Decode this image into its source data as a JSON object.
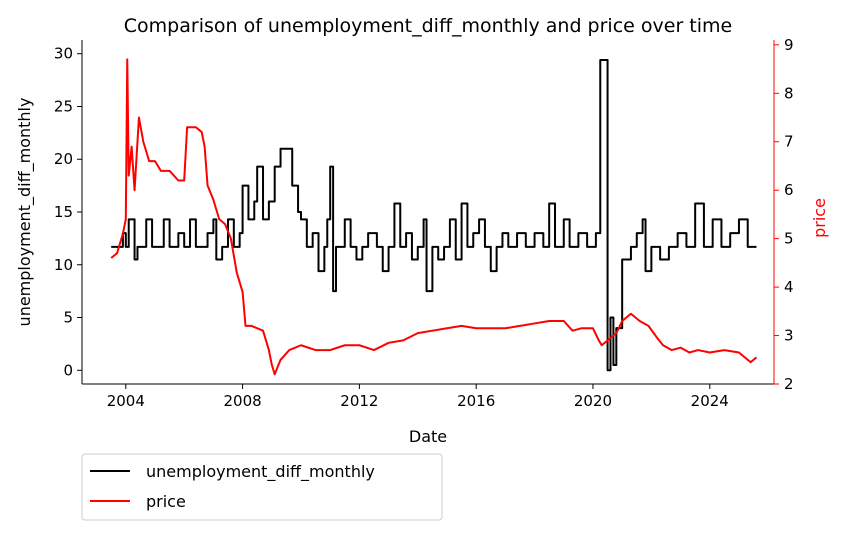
{
  "chart_data": {
    "type": "line",
    "title": "Comparison of unemployment_diff_monthly and price over time",
    "xlabel": "Date",
    "ylabel_left": "unemployment_diff_monthly",
    "ylabel_right": "price",
    "x_ticks": [
      "2004",
      "2008",
      "2012",
      "2016",
      "2020",
      "2024"
    ],
    "x_range": [
      2002.5,
      2026.2
    ],
    "y_left_ticks": [
      0,
      5,
      10,
      15,
      20,
      25,
      30
    ],
    "y_left_range": [
      -1.3,
      31.3
    ],
    "y_right_ticks": [
      2,
      3,
      4,
      5,
      6,
      7,
      8,
      9
    ],
    "y_right_range": [
      2.0,
      9.1
    ],
    "legend_position": "below-left",
    "grid": false,
    "colors": {
      "unemployment_diff_monthly": "#000000",
      "price": "#ff0000",
      "right_axis": "#ff0000"
    },
    "series": [
      {
        "name": "unemployment_diff_monthly",
        "axis": "left",
        "step": true,
        "points": [
          [
            2003.5,
            11.7
          ],
          [
            2003.9,
            13.0
          ],
          [
            2004.0,
            11.7
          ],
          [
            2004.1,
            14.3
          ],
          [
            2004.3,
            10.5
          ],
          [
            2004.4,
            11.7
          ],
          [
            2004.7,
            14.3
          ],
          [
            2004.9,
            11.7
          ],
          [
            2005.3,
            14.3
          ],
          [
            2005.5,
            11.7
          ],
          [
            2005.8,
            13.0
          ],
          [
            2006.0,
            11.7
          ],
          [
            2006.2,
            14.3
          ],
          [
            2006.4,
            11.7
          ],
          [
            2006.8,
            13.0
          ],
          [
            2007.0,
            14.3
          ],
          [
            2007.1,
            10.5
          ],
          [
            2007.3,
            11.7
          ],
          [
            2007.5,
            14.3
          ],
          [
            2007.7,
            11.7
          ],
          [
            2007.9,
            13.0
          ],
          [
            2008.0,
            17.5
          ],
          [
            2008.2,
            14.3
          ],
          [
            2008.4,
            16.0
          ],
          [
            2008.5,
            19.3
          ],
          [
            2008.7,
            14.3
          ],
          [
            2008.9,
            16.0
          ],
          [
            2009.1,
            19.3
          ],
          [
            2009.3,
            21.0
          ],
          [
            2009.7,
            17.5
          ],
          [
            2009.9,
            15.0
          ],
          [
            2010.0,
            14.3
          ],
          [
            2010.2,
            11.7
          ],
          [
            2010.4,
            13.0
          ],
          [
            2010.6,
            9.4
          ],
          [
            2010.8,
            11.7
          ],
          [
            2010.9,
            14.3
          ],
          [
            2011.0,
            19.3
          ],
          [
            2011.1,
            7.5
          ],
          [
            2011.2,
            11.7
          ],
          [
            2011.5,
            14.3
          ],
          [
            2011.7,
            11.7
          ],
          [
            2011.9,
            10.5
          ],
          [
            2012.1,
            11.7
          ],
          [
            2012.3,
            13.0
          ],
          [
            2012.6,
            11.7
          ],
          [
            2012.8,
            9.4
          ],
          [
            2013.0,
            11.7
          ],
          [
            2013.2,
            15.8
          ],
          [
            2013.4,
            11.7
          ],
          [
            2013.6,
            13.0
          ],
          [
            2013.8,
            10.5
          ],
          [
            2014.0,
            11.7
          ],
          [
            2014.2,
            14.3
          ],
          [
            2014.3,
            7.5
          ],
          [
            2014.5,
            11.7
          ],
          [
            2014.7,
            10.5
          ],
          [
            2014.9,
            11.7
          ],
          [
            2015.1,
            14.3
          ],
          [
            2015.3,
            10.5
          ],
          [
            2015.5,
            15.8
          ],
          [
            2015.7,
            11.7
          ],
          [
            2015.9,
            13.0
          ],
          [
            2016.1,
            14.3
          ],
          [
            2016.3,
            11.7
          ],
          [
            2016.5,
            9.4
          ],
          [
            2016.7,
            11.7
          ],
          [
            2016.9,
            13.0
          ],
          [
            2017.1,
            11.7
          ],
          [
            2017.4,
            13.0
          ],
          [
            2017.7,
            11.7
          ],
          [
            2018.0,
            13.0
          ],
          [
            2018.3,
            11.7
          ],
          [
            2018.5,
            15.8
          ],
          [
            2018.7,
            11.7
          ],
          [
            2019.0,
            14.3
          ],
          [
            2019.2,
            11.7
          ],
          [
            2019.5,
            13.0
          ],
          [
            2019.8,
            11.7
          ],
          [
            2020.1,
            13.0
          ],
          [
            2020.25,
            29.4
          ],
          [
            2020.5,
            0.0
          ],
          [
            2020.6,
            5.0
          ],
          [
            2020.7,
            0.5
          ],
          [
            2020.8,
            4.0
          ],
          [
            2021.0,
            10.5
          ],
          [
            2021.3,
            11.7
          ],
          [
            2021.5,
            13.0
          ],
          [
            2021.7,
            14.3
          ],
          [
            2021.8,
            9.4
          ],
          [
            2022.0,
            11.7
          ],
          [
            2022.3,
            10.5
          ],
          [
            2022.6,
            11.7
          ],
          [
            2022.9,
            13.0
          ],
          [
            2023.2,
            11.7
          ],
          [
            2023.5,
            15.8
          ],
          [
            2023.8,
            11.7
          ],
          [
            2024.1,
            14.3
          ],
          [
            2024.4,
            11.7
          ],
          [
            2024.7,
            13.0
          ],
          [
            2025.0,
            14.3
          ],
          [
            2025.3,
            11.7
          ],
          [
            2025.6,
            11.7
          ]
        ]
      },
      {
        "name": "price",
        "axis": "right",
        "step": false,
        "points": [
          [
            2003.5,
            4.6
          ],
          [
            2003.7,
            4.7
          ],
          [
            2003.9,
            5.1
          ],
          [
            2004.0,
            5.4
          ],
          [
            2004.05,
            8.7
          ],
          [
            2004.1,
            6.3
          ],
          [
            2004.2,
            6.9
          ],
          [
            2004.3,
            6.0
          ],
          [
            2004.45,
            7.5
          ],
          [
            2004.6,
            7.0
          ],
          [
            2004.8,
            6.6
          ],
          [
            2005.0,
            6.6
          ],
          [
            2005.2,
            6.4
          ],
          [
            2005.5,
            6.4
          ],
          [
            2005.8,
            6.2
          ],
          [
            2006.0,
            6.2
          ],
          [
            2006.1,
            7.3
          ],
          [
            2006.4,
            7.3
          ],
          [
            2006.6,
            7.2
          ],
          [
            2006.7,
            6.9
          ],
          [
            2006.8,
            6.1
          ],
          [
            2007.0,
            5.8
          ],
          [
            2007.2,
            5.4
          ],
          [
            2007.4,
            5.3
          ],
          [
            2007.6,
            5.0
          ],
          [
            2007.8,
            4.3
          ],
          [
            2008.0,
            3.9
          ],
          [
            2008.1,
            3.2
          ],
          [
            2008.3,
            3.2
          ],
          [
            2008.7,
            3.1
          ],
          [
            2008.9,
            2.7
          ],
          [
            2009.0,
            2.4
          ],
          [
            2009.1,
            2.2
          ],
          [
            2009.3,
            2.5
          ],
          [
            2009.6,
            2.7
          ],
          [
            2010.0,
            2.8
          ],
          [
            2010.5,
            2.7
          ],
          [
            2011.0,
            2.7
          ],
          [
            2011.5,
            2.8
          ],
          [
            2012.0,
            2.8
          ],
          [
            2012.5,
            2.7
          ],
          [
            2013.0,
            2.85
          ],
          [
            2013.5,
            2.9
          ],
          [
            2014.0,
            3.05
          ],
          [
            2014.5,
            3.1
          ],
          [
            2015.0,
            3.15
          ],
          [
            2015.5,
            3.2
          ],
          [
            2016.0,
            3.15
          ],
          [
            2016.5,
            3.15
          ],
          [
            2017.0,
            3.15
          ],
          [
            2017.5,
            3.2
          ],
          [
            2018.0,
            3.25
          ],
          [
            2018.5,
            3.3
          ],
          [
            2019.0,
            3.3
          ],
          [
            2019.3,
            3.1
          ],
          [
            2019.6,
            3.15
          ],
          [
            2020.0,
            3.15
          ],
          [
            2020.2,
            2.9
          ],
          [
            2020.3,
            2.8
          ],
          [
            2020.5,
            2.9
          ],
          [
            2020.8,
            3.05
          ],
          [
            2021.0,
            3.3
          ],
          [
            2021.3,
            3.45
          ],
          [
            2021.6,
            3.3
          ],
          [
            2021.9,
            3.2
          ],
          [
            2022.2,
            2.95
          ],
          [
            2022.4,
            2.8
          ],
          [
            2022.7,
            2.7
          ],
          [
            2023.0,
            2.75
          ],
          [
            2023.3,
            2.65
          ],
          [
            2023.6,
            2.7
          ],
          [
            2024.0,
            2.65
          ],
          [
            2024.5,
            2.7
          ],
          [
            2025.0,
            2.65
          ],
          [
            2025.2,
            2.55
          ],
          [
            2025.4,
            2.45
          ],
          [
            2025.6,
            2.55
          ]
        ]
      }
    ]
  }
}
